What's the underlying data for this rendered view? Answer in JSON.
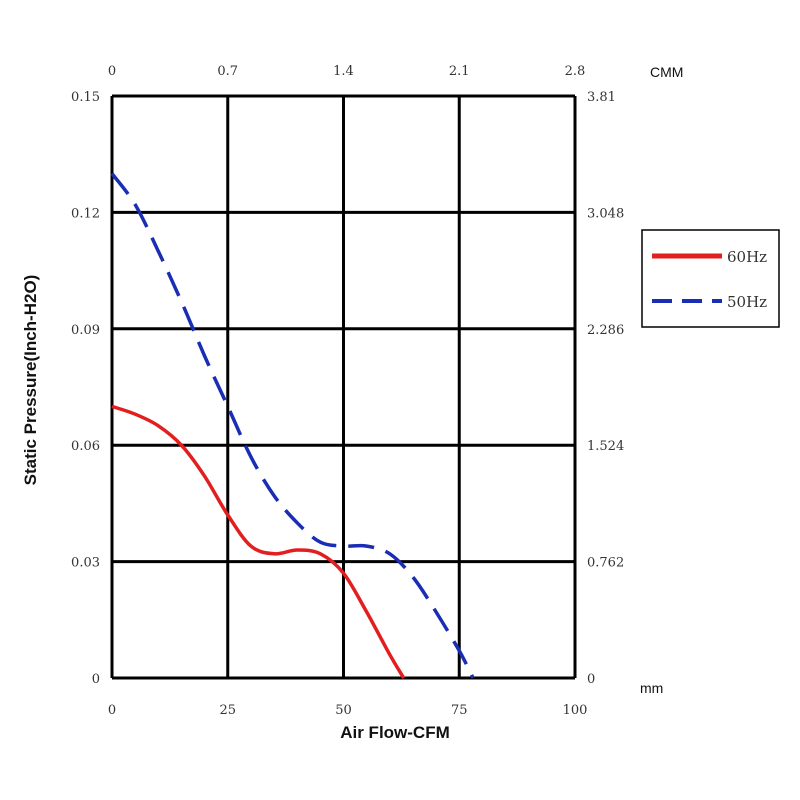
{
  "chart_data": {
    "type": "line",
    "xlabel": "Air Flow-CFM",
    "ylabel": "Static Pressure(Inch-H2O)",
    "xlim": [
      0,
      100
    ],
    "ylim": [
      0,
      0.15
    ],
    "x_ticks": [
      "0",
      "25",
      "50",
      "75",
      "100"
    ],
    "y_ticks": [
      "0",
      "0.03",
      "0.06",
      "0.09",
      "0.12",
      "0.15"
    ],
    "secondary_x_axis": {
      "unit": "CMM",
      "ticks": [
        "0",
        "0.7",
        "1.4",
        "2.1",
        "2.8"
      ]
    },
    "secondary_y_axis": {
      "unit": "mm",
      "ticks": [
        "0",
        "0.762",
        "1.524",
        "2.286",
        "3.048",
        "3.81"
      ]
    },
    "grid": true,
    "legend_position": "right",
    "series": [
      {
        "name": "60Hz",
        "color": "#e31e1e",
        "style": "solid",
        "x": [
          0,
          5,
          10,
          15,
          20,
          25,
          30,
          35,
          40,
          45,
          50,
          55,
          60,
          63
        ],
        "y": [
          0.07,
          0.068,
          0.065,
          0.06,
          0.052,
          0.042,
          0.034,
          0.032,
          0.033,
          0.032,
          0.027,
          0.017,
          0.006,
          0.0
        ]
      },
      {
        "name": "50Hz",
        "color": "#1a2db5",
        "style": "dashed",
        "x": [
          0,
          5,
          10,
          15,
          20,
          25,
          30,
          35,
          40,
          45,
          50,
          55,
          60,
          65,
          70,
          75,
          78
        ],
        "y": [
          0.13,
          0.122,
          0.11,
          0.097,
          0.083,
          0.07,
          0.057,
          0.047,
          0.04,
          0.035,
          0.034,
          0.034,
          0.032,
          0.026,
          0.017,
          0.007,
          0.0
        ]
      }
    ]
  }
}
